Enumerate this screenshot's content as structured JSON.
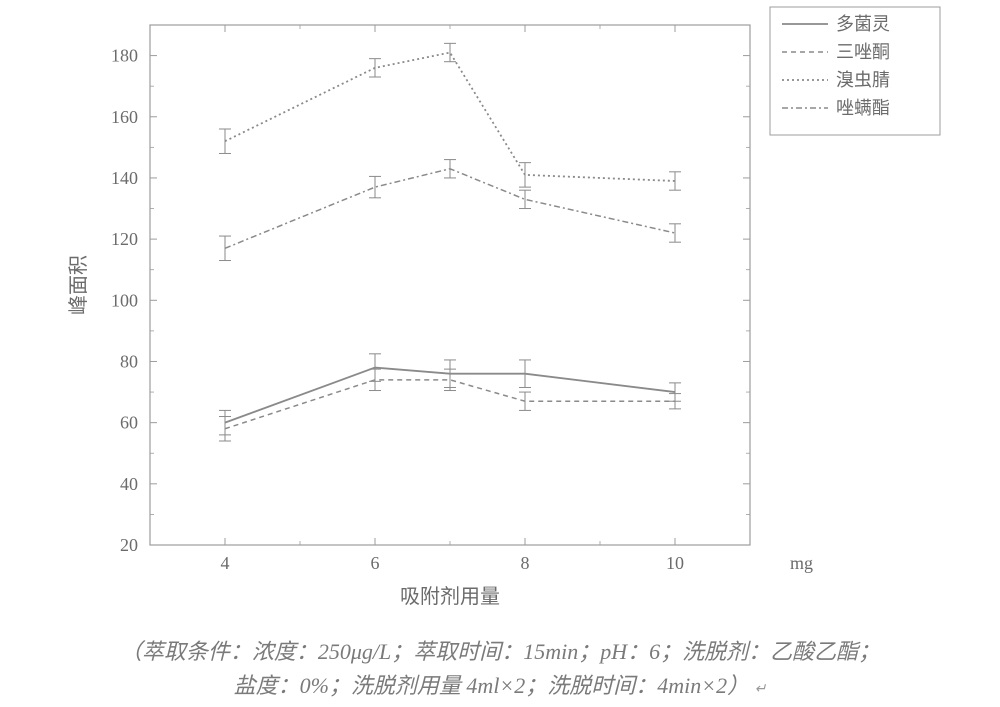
{
  "chart": {
    "type": "line",
    "background_color": "#ffffff",
    "plot_border_color": "#9c9c9c",
    "plot_border_width": 1.2,
    "xlabel": "吸附剂用量",
    "xunit": "mg",
    "ylabel": "峰面积",
    "label_fontsize": 20,
    "label_color": "#6b6b6b",
    "tick_fontsize": 18,
    "tick_color": "#6b6b6b",
    "xlim": [
      3,
      11
    ],
    "ylim": [
      20,
      190
    ],
    "xtick_positions": [
      4,
      6,
      8,
      10
    ],
    "xtick_labels": [
      "4",
      "6",
      "8",
      "10"
    ],
    "ytick_positions": [
      20,
      40,
      60,
      80,
      100,
      120,
      140,
      160,
      180
    ],
    "ytick_labels": [
      "20",
      "40",
      "60",
      "80",
      "100",
      "120",
      "140",
      "160",
      "180"
    ],
    "minor_ticks": true,
    "tick_direction": "in",
    "legend": {
      "position": "top-right-outside",
      "border_color": "#9c9c9c",
      "background": "#ffffff",
      "fontsize": 18,
      "text_color": "#6b6b6b",
      "items": [
        {
          "label": "多菌灵",
          "dash": "solid",
          "weight": 1.8
        },
        {
          "label": "三唑酮",
          "dash": "dashed",
          "weight": 1.5
        },
        {
          "label": "溴虫腈",
          "dash": "dotted",
          "weight": 1.8
        },
        {
          "label": "唑螨酯",
          "dash": "dashdot",
          "weight": 1.5
        }
      ]
    },
    "series_color": "#8a8a8a",
    "errorbar_color": "#8a8a8a",
    "cap_width": 6,
    "x": [
      4,
      6,
      7,
      8,
      10
    ],
    "series": [
      {
        "name": "多菌灵",
        "dash": "solid",
        "y": [
          60,
          78,
          76,
          76,
          70
        ],
        "err": [
          4.0,
          4.5,
          4.5,
          4.5,
          3.0
        ]
      },
      {
        "name": "三唑酮",
        "dash": "dashed",
        "y": [
          58,
          74,
          74,
          67,
          67
        ],
        "err": [
          4.0,
          3.5,
          3.5,
          3.0,
          2.5
        ]
      },
      {
        "name": "溴虫腈",
        "dash": "dotted",
        "y": [
          152,
          176,
          181,
          141,
          139
        ],
        "err": [
          4.0,
          3.0,
          3.0,
          4.0,
          3.0
        ]
      },
      {
        "name": "唑螨酯",
        "dash": "dashdot",
        "y": [
          117,
          137,
          143,
          133,
          122
        ],
        "err": [
          4.0,
          3.5,
          3.0,
          3.0,
          3.0
        ]
      }
    ]
  },
  "caption": {
    "line1_parts": [
      "（萃取条件：浓度：250μg/L；萃取时间：15min；pH：6；洗脱剂：乙酸乙酯；"
    ],
    "line2_parts": [
      "盐度：0%；洗脱剂用量 4ml×2；洗脱时间：4min×2）"
    ],
    "return_mark": "↵"
  }
}
